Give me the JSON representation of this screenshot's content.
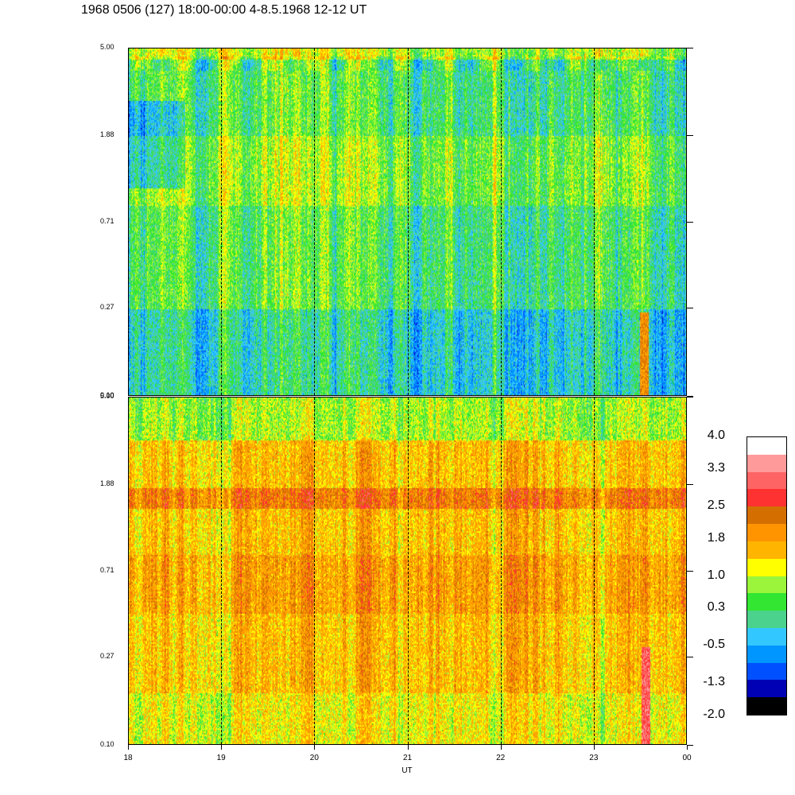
{
  "title": "1968 0506 (127) 18:00-00:00 4-8.5.1968  12-12 UT",
  "chart_data": {
    "type": "heatmap",
    "title": "1968 0506 (127) 18:00-00:00 4-8.5.1968  12-12 UT",
    "xlabel": "UT",
    "x_ticks": [
      "18",
      "19",
      "20",
      "21",
      "22",
      "23",
      "00"
    ],
    "x_range_hours": [
      18,
      24
    ],
    "panels": [
      {
        "name": "top",
        "y_ticks": [
          "5.00",
          "1.88",
          "0.71",
          "0.27",
          "0.10"
        ],
        "ylim": [
          0.1,
          5.0
        ],
        "y_scale": "log",
        "dominant_values": "green/cyan (-0.5 to 0.8)"
      },
      {
        "name": "bottom",
        "y_ticks": [
          "5.00",
          "1.88",
          "0.71",
          "0.27",
          "0.10"
        ],
        "ylim": [
          0.1,
          5.0
        ],
        "y_scale": "log",
        "dominant_values": "yellow/orange (1.0 to 2.3)"
      }
    ],
    "colorbar": {
      "labels": [
        "4.0",
        "3.3",
        "2.5",
        "1.8",
        "1.0",
        "0.3",
        "-0.5",
        "-1.3",
        "-2.0"
      ],
      "range": [
        -2.0,
        4.0
      ],
      "colors": [
        "#ffffff",
        "#ff9a9a",
        "#ff6464",
        "#ff3232",
        "#d46e00",
        "#ff9400",
        "#ffb400",
        "#ffff00",
        "#9bf53a",
        "#32e632",
        "#4bd28c",
        "#32c8ff",
        "#0096ff",
        "#0050ff",
        "#0000b4",
        "#000000"
      ]
    }
  }
}
